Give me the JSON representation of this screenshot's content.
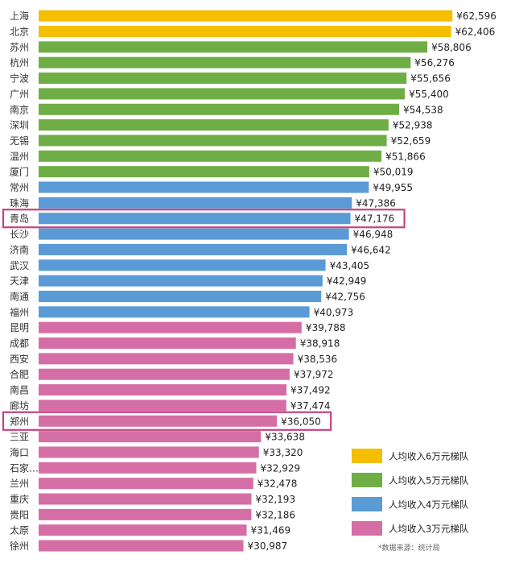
{
  "chart_data": {
    "type": "bar",
    "orientation": "horizontal",
    "categories": [
      "上海",
      "北京",
      "苏州",
      "杭州",
      "宁波",
      "广州",
      "南京",
      "深圳",
      "无锡",
      "温州",
      "厦门",
      "常州",
      "珠海",
      "青岛",
      "长沙",
      "济南",
      "武汉",
      "天津",
      "南通",
      "福州",
      "昆明",
      "成都",
      "西安",
      "合肥",
      "南昌",
      "廊坊",
      "郑州",
      "三亚",
      "海口",
      "石家…",
      "兰州",
      "重庆",
      "贵阳",
      "太原",
      "徐州"
    ],
    "values": [
      62596,
      62406,
      58806,
      56276,
      55656,
      55400,
      54538,
      52938,
      52659,
      51866,
      50019,
      49955,
      47386,
      47176,
      46948,
      46642,
      43405,
      42949,
      42756,
      40973,
      39788,
      38918,
      38536,
      37972,
      37492,
      37474,
      36050,
      33638,
      33320,
      32929,
      32478,
      32193,
      32186,
      31469,
      30987
    ],
    "value_labels": [
      "¥62,596",
      "¥62,406",
      "¥58,806",
      "¥56,276",
      "¥55,656",
      "¥55,400",
      "¥54,538",
      "¥52,938",
      "¥52,659",
      "¥51,866",
      "¥50,019",
      "¥49,955",
      "¥47,386",
      "¥47,176",
      "¥46,948",
      "¥46,642",
      "¥43,405",
      "¥42,949",
      "¥42,756",
      "¥40,973",
      "¥39,788",
      "¥38,918",
      "¥38,536",
      "¥37,972",
      "¥37,492",
      "¥37,474",
      "¥36,050",
      "¥33,638",
      "¥33,320",
      "¥32,929",
      "¥32,478",
      "¥32,193",
      "¥32,186",
      "¥31,469",
      "¥30,987"
    ],
    "tiers": [
      0,
      0,
      1,
      1,
      1,
      1,
      1,
      1,
      1,
      1,
      1,
      2,
      2,
      2,
      2,
      2,
      2,
      2,
      2,
      2,
      3,
      3,
      3,
      3,
      3,
      3,
      3,
      3,
      3,
      3,
      3,
      3,
      3,
      3,
      3
    ],
    "highlighted": [
      "青岛",
      "郑州"
    ],
    "highlight_color": "#c8427e",
    "legend": {
      "position": "bottom-right",
      "entries": [
        {
          "label": "人均收入6万元梯队",
          "color": "#f5be00"
        },
        {
          "label": "人均收入5万元梯队",
          "color": "#6fae45"
        },
        {
          "label": "人均收入4万元梯队",
          "color": "#5b9bd5"
        },
        {
          "label": "人均收入3万元梯队",
          "color": "#d66ea6"
        }
      ]
    },
    "grid": false,
    "note": "*数据来源：统计局"
  }
}
